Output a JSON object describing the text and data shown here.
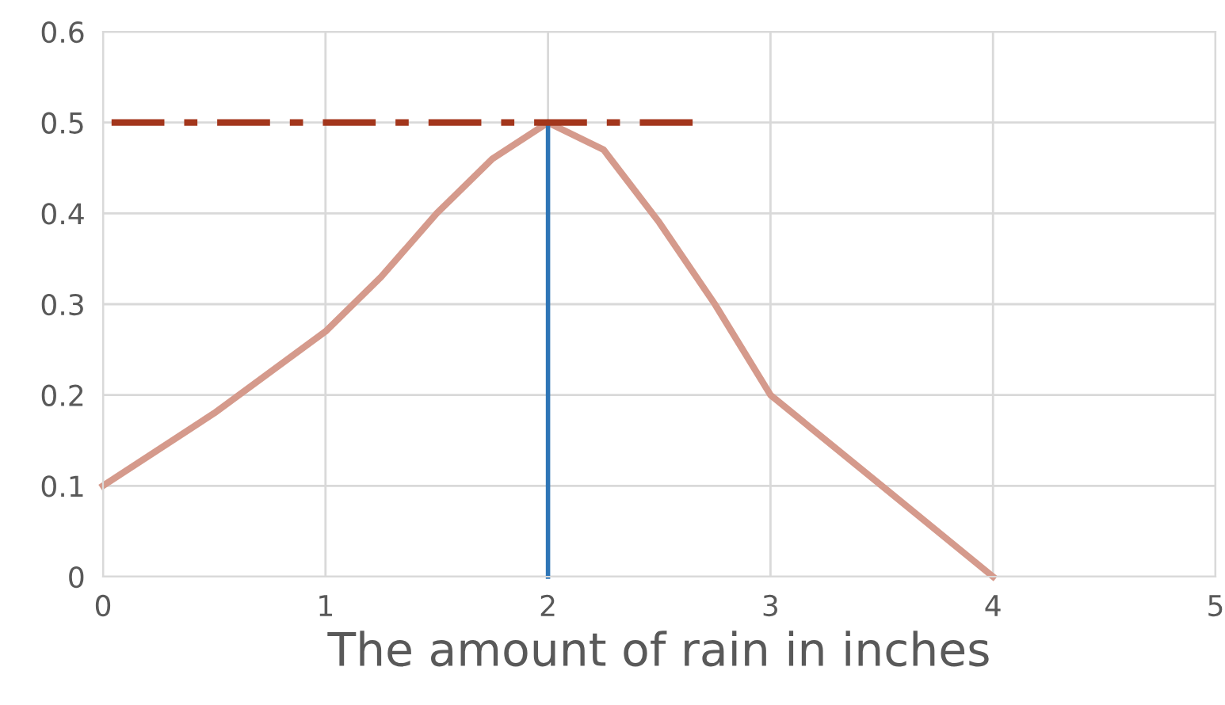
{
  "chart_data": {
    "type": "line",
    "xlabel": "The amount of rain in inches",
    "series": [
      {
        "color": "#d59a8c",
        "x": [
          0,
          0.5,
          1,
          1.25,
          1.5,
          1.75,
          2,
          2.25,
          2.5,
          2.75,
          3,
          3.5,
          4
        ],
        "values": [
          0.1,
          0.18,
          0.27,
          0.33,
          0.4,
          0.46,
          0.5,
          0.47,
          0.39,
          0.3,
          0.2,
          0.1,
          0
        ]
      },
      {
        "color": "#2e75b6",
        "x": [
          2,
          2
        ],
        "values": [
          0.5,
          0
        ]
      },
      {
        "color": "#a3361c",
        "x": [
          0,
          2.65
        ],
        "values": [
          0.5,
          0.5
        ],
        "line_style": "dashed"
      }
    ],
    "xlim": [
      0,
      5
    ],
    "xticks": [
      0,
      1,
      2,
      3,
      4,
      5
    ],
    "ylim": [
      0,
      0.6
    ],
    "yticks": [
      0,
      0.1,
      0.2,
      0.3,
      0.4,
      0.5,
      0.6
    ],
    "grid": true,
    "legend": false
  }
}
